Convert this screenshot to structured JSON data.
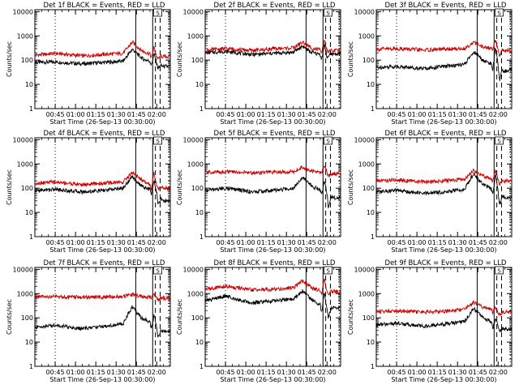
{
  "shared": {
    "x_ticks": [
      "00:45",
      "01:00",
      "01:15",
      "01:30",
      "01:45",
      "02:00"
    ],
    "xlabel": "Start Time (26-Sep-13 00:30:00)",
    "ylabel": "Counts/sec",
    "y_ticks": [
      "1",
      "10",
      "100",
      "1000",
      "10000"
    ],
    "flag_label": "S"
  },
  "chart_data": [
    {
      "type": "line",
      "title": "Det 1f BLACK = Events, RED = LLD",
      "x_unit": "minutes since 00:30",
      "xlim": [
        0,
        100
      ],
      "y_scale": "log",
      "ylim": [
        1,
        12000
      ],
      "series": [
        {
          "color": "#000000",
          "x": [
            0,
            15,
            35,
            50,
            65,
            72,
            75,
            77,
            80,
            85,
            86,
            88,
            90,
            91,
            93,
            95,
            100
          ],
          "y": [
            80,
            85,
            70,
            80,
            90,
            280,
            200,
            150,
            110,
            90,
            60,
            180,
            70,
            45,
            60,
            55,
            55
          ]
        },
        {
          "color": "#cc0000",
          "x": [
            0,
            15,
            35,
            50,
            65,
            72,
            75,
            77,
            80,
            85,
            86,
            88,
            90,
            91,
            93,
            95,
            100
          ],
          "y": [
            160,
            190,
            150,
            170,
            190,
            550,
            400,
            300,
            230,
            180,
            120,
            350,
            130,
            110,
            140,
            140,
            140
          ]
        }
      ],
      "markers": {
        "solid": [
          74.5,
          87
        ],
        "dashed": [
          89,
          92.5
        ],
        "dotted": [
          15,
          99
        ]
      }
    },
    {
      "type": "line",
      "title": "Det 2f BLACK = Events, RED = LLD",
      "x_unit": "minutes since 00:30",
      "xlim": [
        0,
        100
      ],
      "y_scale": "log",
      "ylim": [
        1,
        12000
      ],
      "series": [
        {
          "color": "#000000",
          "x": [
            0,
            15,
            35,
            50,
            65,
            72,
            75,
            77,
            80,
            85,
            86,
            88,
            90,
            91,
            93,
            95,
            100
          ],
          "y": [
            200,
            230,
            170,
            190,
            210,
            380,
            280,
            230,
            200,
            170,
            110,
            450,
            130,
            150,
            170,
            180,
            180
          ]
        },
        {
          "color": "#cc0000",
          "x": [
            0,
            15,
            35,
            50,
            65,
            72,
            75,
            77,
            80,
            85,
            86,
            88,
            90,
            91,
            93,
            95,
            100
          ],
          "y": [
            250,
            300,
            250,
            290,
            320,
            550,
            420,
            350,
            300,
            260,
            180,
            750,
            220,
            230,
            240,
            250,
            250
          ]
        }
      ],
      "markers": {
        "solid": [
          74.5,
          87
        ],
        "dashed": [
          89,
          92.5
        ],
        "dotted": [
          15,
          99
        ]
      }
    },
    {
      "type": "line",
      "title": "Det 3f BLACK = Events, RED = LLD",
      "x_unit": "minutes since 00:30",
      "xlim": [
        0,
        100
      ],
      "y_scale": "log",
      "ylim": [
        1,
        12000
      ],
      "series": [
        {
          "color": "#000000",
          "x": [
            0,
            15,
            35,
            50,
            65,
            72,
            75,
            77,
            80,
            85,
            86,
            88,
            90,
            91,
            93,
            95,
            100
          ],
          "y": [
            50,
            55,
            45,
            55,
            65,
            220,
            160,
            120,
            90,
            70,
            40,
            300,
            60,
            15,
            40,
            35,
            40
          ]
        },
        {
          "color": "#cc0000",
          "x": [
            0,
            15,
            35,
            50,
            65,
            72,
            75,
            77,
            80,
            85,
            86,
            88,
            90,
            91,
            93,
            95,
            100
          ],
          "y": [
            280,
            300,
            260,
            280,
            300,
            550,
            430,
            380,
            340,
            300,
            260,
            700,
            270,
            150,
            260,
            250,
            250
          ]
        }
      ],
      "markers": {
        "solid": [
          74.5,
          87
        ],
        "dashed": [
          89,
          92.5
        ],
        "dotted": [
          15,
          99
        ]
      }
    },
    {
      "type": "line",
      "title": "Det 4f BLACK = Events, RED = LLD",
      "x_unit": "minutes since 00:30",
      "xlim": [
        0,
        100
      ],
      "y_scale": "log",
      "ylim": [
        1,
        12000
      ],
      "series": [
        {
          "color": "#000000",
          "x": [
            0,
            15,
            35,
            50,
            65,
            72,
            75,
            77,
            80,
            85,
            86,
            88,
            90,
            91,
            93,
            95,
            100
          ],
          "y": [
            80,
            90,
            70,
            80,
            100,
            300,
            200,
            150,
            110,
            90,
            50,
            250,
            60,
            20,
            35,
            30,
            30
          ]
        },
        {
          "color": "#cc0000",
          "x": [
            0,
            15,
            35,
            50,
            65,
            72,
            75,
            77,
            80,
            85,
            86,
            88,
            90,
            91,
            93,
            95,
            100
          ],
          "y": [
            160,
            180,
            140,
            160,
            180,
            450,
            330,
            260,
            200,
            150,
            90,
            450,
            120,
            90,
            100,
            100,
            100
          ]
        }
      ],
      "markers": {
        "solid": [
          74.5,
          87
        ],
        "dashed": [
          89,
          92.5
        ],
        "dotted": [
          15,
          99
        ]
      }
    },
    {
      "type": "line",
      "title": "Det 5f BLACK = Events, RED = LLD",
      "x_unit": "minutes since 00:30",
      "xlim": [
        0,
        100
      ],
      "y_scale": "log",
      "ylim": [
        1,
        12000
      ],
      "series": [
        {
          "color": "#000000",
          "x": [
            0,
            15,
            35,
            50,
            65,
            72,
            75,
            77,
            80,
            85,
            86,
            88,
            90,
            91,
            93,
            95,
            100
          ],
          "y": [
            80,
            100,
            70,
            80,
            100,
            300,
            200,
            150,
            110,
            90,
            50,
            200,
            60,
            15,
            45,
            40,
            40
          ]
        },
        {
          "color": "#cc0000",
          "x": [
            0,
            15,
            35,
            50,
            65,
            72,
            75,
            77,
            80,
            85,
            86,
            88,
            90,
            91,
            93,
            95,
            100
          ],
          "y": [
            450,
            480,
            430,
            450,
            480,
            750,
            600,
            550,
            500,
            450,
            420,
            900,
            430,
            300,
            400,
            400,
            400
          ]
        }
      ],
      "markers": {
        "solid": [
          74.5,
          87
        ],
        "dashed": [
          89,
          92.5
        ],
        "dotted": [
          15,
          99
        ]
      }
    },
    {
      "type": "line",
      "title": "Det 6f BLACK = Events, RED = LLD",
      "x_unit": "minutes since 00:30",
      "xlim": [
        0,
        100
      ],
      "y_scale": "log",
      "ylim": [
        1,
        12000
      ],
      "series": [
        {
          "color": "#000000",
          "x": [
            0,
            15,
            35,
            50,
            65,
            72,
            75,
            77,
            80,
            85,
            86,
            88,
            90,
            91,
            93,
            95,
            100
          ],
          "y": [
            70,
            80,
            60,
            70,
            90,
            400,
            250,
            180,
            130,
            100,
            50,
            400,
            70,
            20,
            45,
            40,
            40
          ]
        },
        {
          "color": "#cc0000",
          "x": [
            0,
            15,
            35,
            50,
            65,
            72,
            75,
            77,
            80,
            85,
            86,
            88,
            90,
            91,
            93,
            95,
            100
          ],
          "y": [
            200,
            220,
            180,
            200,
            230,
            550,
            420,
            350,
            300,
            250,
            180,
            600,
            220,
            150,
            200,
            200,
            200
          ]
        }
      ],
      "markers": {
        "solid": [
          74.5,
          87
        ],
        "dashed": [
          89,
          92.5
        ],
        "dotted": [
          15,
          99
        ]
      }
    },
    {
      "type": "line",
      "title": "Det 7f BLACK = Events, RED = LLD",
      "x_unit": "minutes since 00:30",
      "xlim": [
        0,
        100
      ],
      "y_scale": "log",
      "ylim": [
        1,
        12000
      ],
      "series": [
        {
          "color": "#000000",
          "x": [
            0,
            15,
            35,
            50,
            65,
            72,
            75,
            77,
            80,
            85,
            86,
            88,
            90,
            91,
            93,
            95,
            100
          ],
          "y": [
            40,
            50,
            35,
            45,
            55,
            300,
            180,
            120,
            90,
            70,
            35,
            130,
            45,
            15,
            30,
            28,
            28
          ]
        },
        {
          "color": "#cc0000",
          "x": [
            0,
            15,
            35,
            50,
            65,
            72,
            75,
            77,
            80,
            85,
            86,
            88,
            90,
            91,
            93,
            95,
            100
          ],
          "y": [
            700,
            750,
            700,
            720,
            750,
            900,
            820,
            780,
            750,
            720,
            650,
            950,
            700,
            550,
            650,
            650,
            650
          ]
        }
      ],
      "markers": {
        "solid": [
          74.5,
          87
        ],
        "dashed": [
          89,
          92.5
        ],
        "dotted": [
          15,
          99
        ]
      }
    },
    {
      "type": "line",
      "title": "Det 8f BLACK = Events, RED = LLD",
      "x_unit": "minutes since 00:30",
      "xlim": [
        0,
        100
      ],
      "y_scale": "log",
      "ylim": [
        1,
        12000
      ],
      "series": [
        {
          "color": "#000000",
          "x": [
            0,
            15,
            35,
            50,
            65,
            72,
            75,
            77,
            80,
            85,
            86,
            88,
            90,
            91,
            93,
            95,
            100
          ],
          "y": [
            500,
            800,
            400,
            500,
            600,
            1300,
            900,
            700,
            500,
            350,
            150,
            1200,
            200,
            100,
            250,
            250,
            250
          ]
        },
        {
          "color": "#cc0000",
          "x": [
            0,
            15,
            35,
            50,
            65,
            72,
            75,
            77,
            80,
            85,
            86,
            88,
            90,
            91,
            93,
            95,
            100
          ],
          "y": [
            1500,
            2000,
            1400,
            1500,
            1700,
            3500,
            2500,
            2000,
            1600,
            1300,
            900,
            4000,
            1200,
            1000,
            1200,
            1200,
            1200
          ]
        }
      ],
      "markers": {
        "solid": [
          74.5,
          87
        ],
        "dashed": [
          89,
          92.5
        ],
        "dotted": [
          15,
          99
        ]
      }
    },
    {
      "type": "line",
      "title": "Det 9f BLACK = Events, RED = LLD",
      "x_unit": "minutes since 00:30",
      "xlim": [
        0,
        100
      ],
      "y_scale": "log",
      "ylim": [
        1,
        12000
      ],
      "series": [
        {
          "color": "#000000",
          "x": [
            0,
            15,
            35,
            50,
            65,
            72,
            75,
            77,
            80,
            85,
            86,
            88,
            90,
            91,
            93,
            95,
            100
          ],
          "y": [
            50,
            60,
            45,
            55,
            70,
            250,
            170,
            120,
            90,
            70,
            35,
            100,
            45,
            25,
            35,
            35,
            35
          ]
        },
        {
          "color": "#cc0000",
          "x": [
            0,
            15,
            35,
            50,
            65,
            72,
            75,
            77,
            80,
            85,
            86,
            88,
            90,
            91,
            93,
            95,
            100
          ],
          "y": [
            180,
            200,
            170,
            190,
            220,
            450,
            350,
            300,
            260,
            220,
            160,
            300,
            170,
            140,
            170,
            170,
            170
          ]
        }
      ],
      "markers": {
        "solid": [
          74.5,
          87
        ],
        "dashed": [
          89,
          92.5
        ],
        "dotted": [
          15,
          99
        ]
      }
    }
  ]
}
